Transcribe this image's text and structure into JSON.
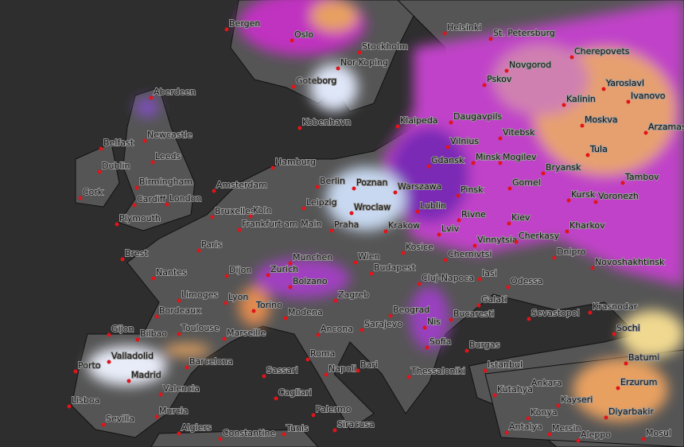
{
  "cities": [
    "Bergen",
    "Oslo",
    "Stockholm",
    "Helsinki",
    "St. Petersburg",
    "Novgorod",
    "Cherepovets",
    "Yaroslavl",
    "Ivanovo",
    "Kalinin",
    "Moskva",
    "Arzamas",
    "Tula",
    "Tambov",
    "Pskov",
    "Aberdeen",
    "Goteborg",
    "Nor-Koping",
    "Kobenhavn",
    "Klaipeda",
    "Daugavpils",
    "Vitebsk",
    "Vilnius",
    "Minsk",
    "Mogilev",
    "Bryansk",
    "Newcastle",
    "Leeds",
    "Belfast",
    "Dublin",
    "Cork",
    "Birmingham",
    "Cardiff",
    "London",
    "Plymouth",
    "Hamburg",
    "Amsterdam",
    "Berlin",
    "Poznan",
    "Gdansk",
    "Warszawa",
    "Pinsk",
    "Gomel",
    "Kursk",
    "Voronezh",
    "Bruxelles",
    "Koln",
    "Leipzig",
    "Wroclaw",
    "Lublin",
    "Rivne",
    "Kiev",
    "Kharkov",
    "Frankfurt am Main",
    "Praha",
    "Krakow",
    "Lviv",
    "Vinnytsia",
    "Cherkasy",
    "Paris",
    "Brest",
    "Munchen",
    "Wien",
    "Kosice",
    "Chernivtsi",
    "Dnipro",
    "Novoshakhtinsk",
    "Nantes",
    "Dijon",
    "Zurich",
    "Budapest",
    "Cluj-Napoca",
    "Iasi",
    "Odessa",
    "Krasnodar",
    "Limoges",
    "Lyon",
    "Bolzano",
    "Zagreb",
    "Galati",
    "Bordeaux",
    "Torino",
    "Modena",
    "Beograd",
    "Bucaresti",
    "Sevastopol",
    "Sochi",
    "Toulouse",
    "Marseille",
    "Ancona",
    "Sarajevo",
    "Nis",
    "Sofia",
    "Burgas",
    "Batumi",
    "Gijon",
    "Bilbao",
    "Barcelona",
    "Roma",
    "Valladolid",
    "Porto",
    "Napoli",
    "Bari",
    "Thessaloniki",
    "Istanbul",
    "Ankara",
    "Erzurum",
    "Madrid",
    "Valencia",
    "Sassari",
    "Cagliari",
    "Kutahya",
    "Kayseri",
    "Diyarbakir",
    "Lisboa",
    "Sevilla",
    "Murcia",
    "Palermo",
    "Siracusa",
    "Konya",
    "Antalya",
    "Mersin",
    "Aleppo",
    "Mosul",
    "Algiers",
    "Constantine",
    "Tunis"
  ]
}
